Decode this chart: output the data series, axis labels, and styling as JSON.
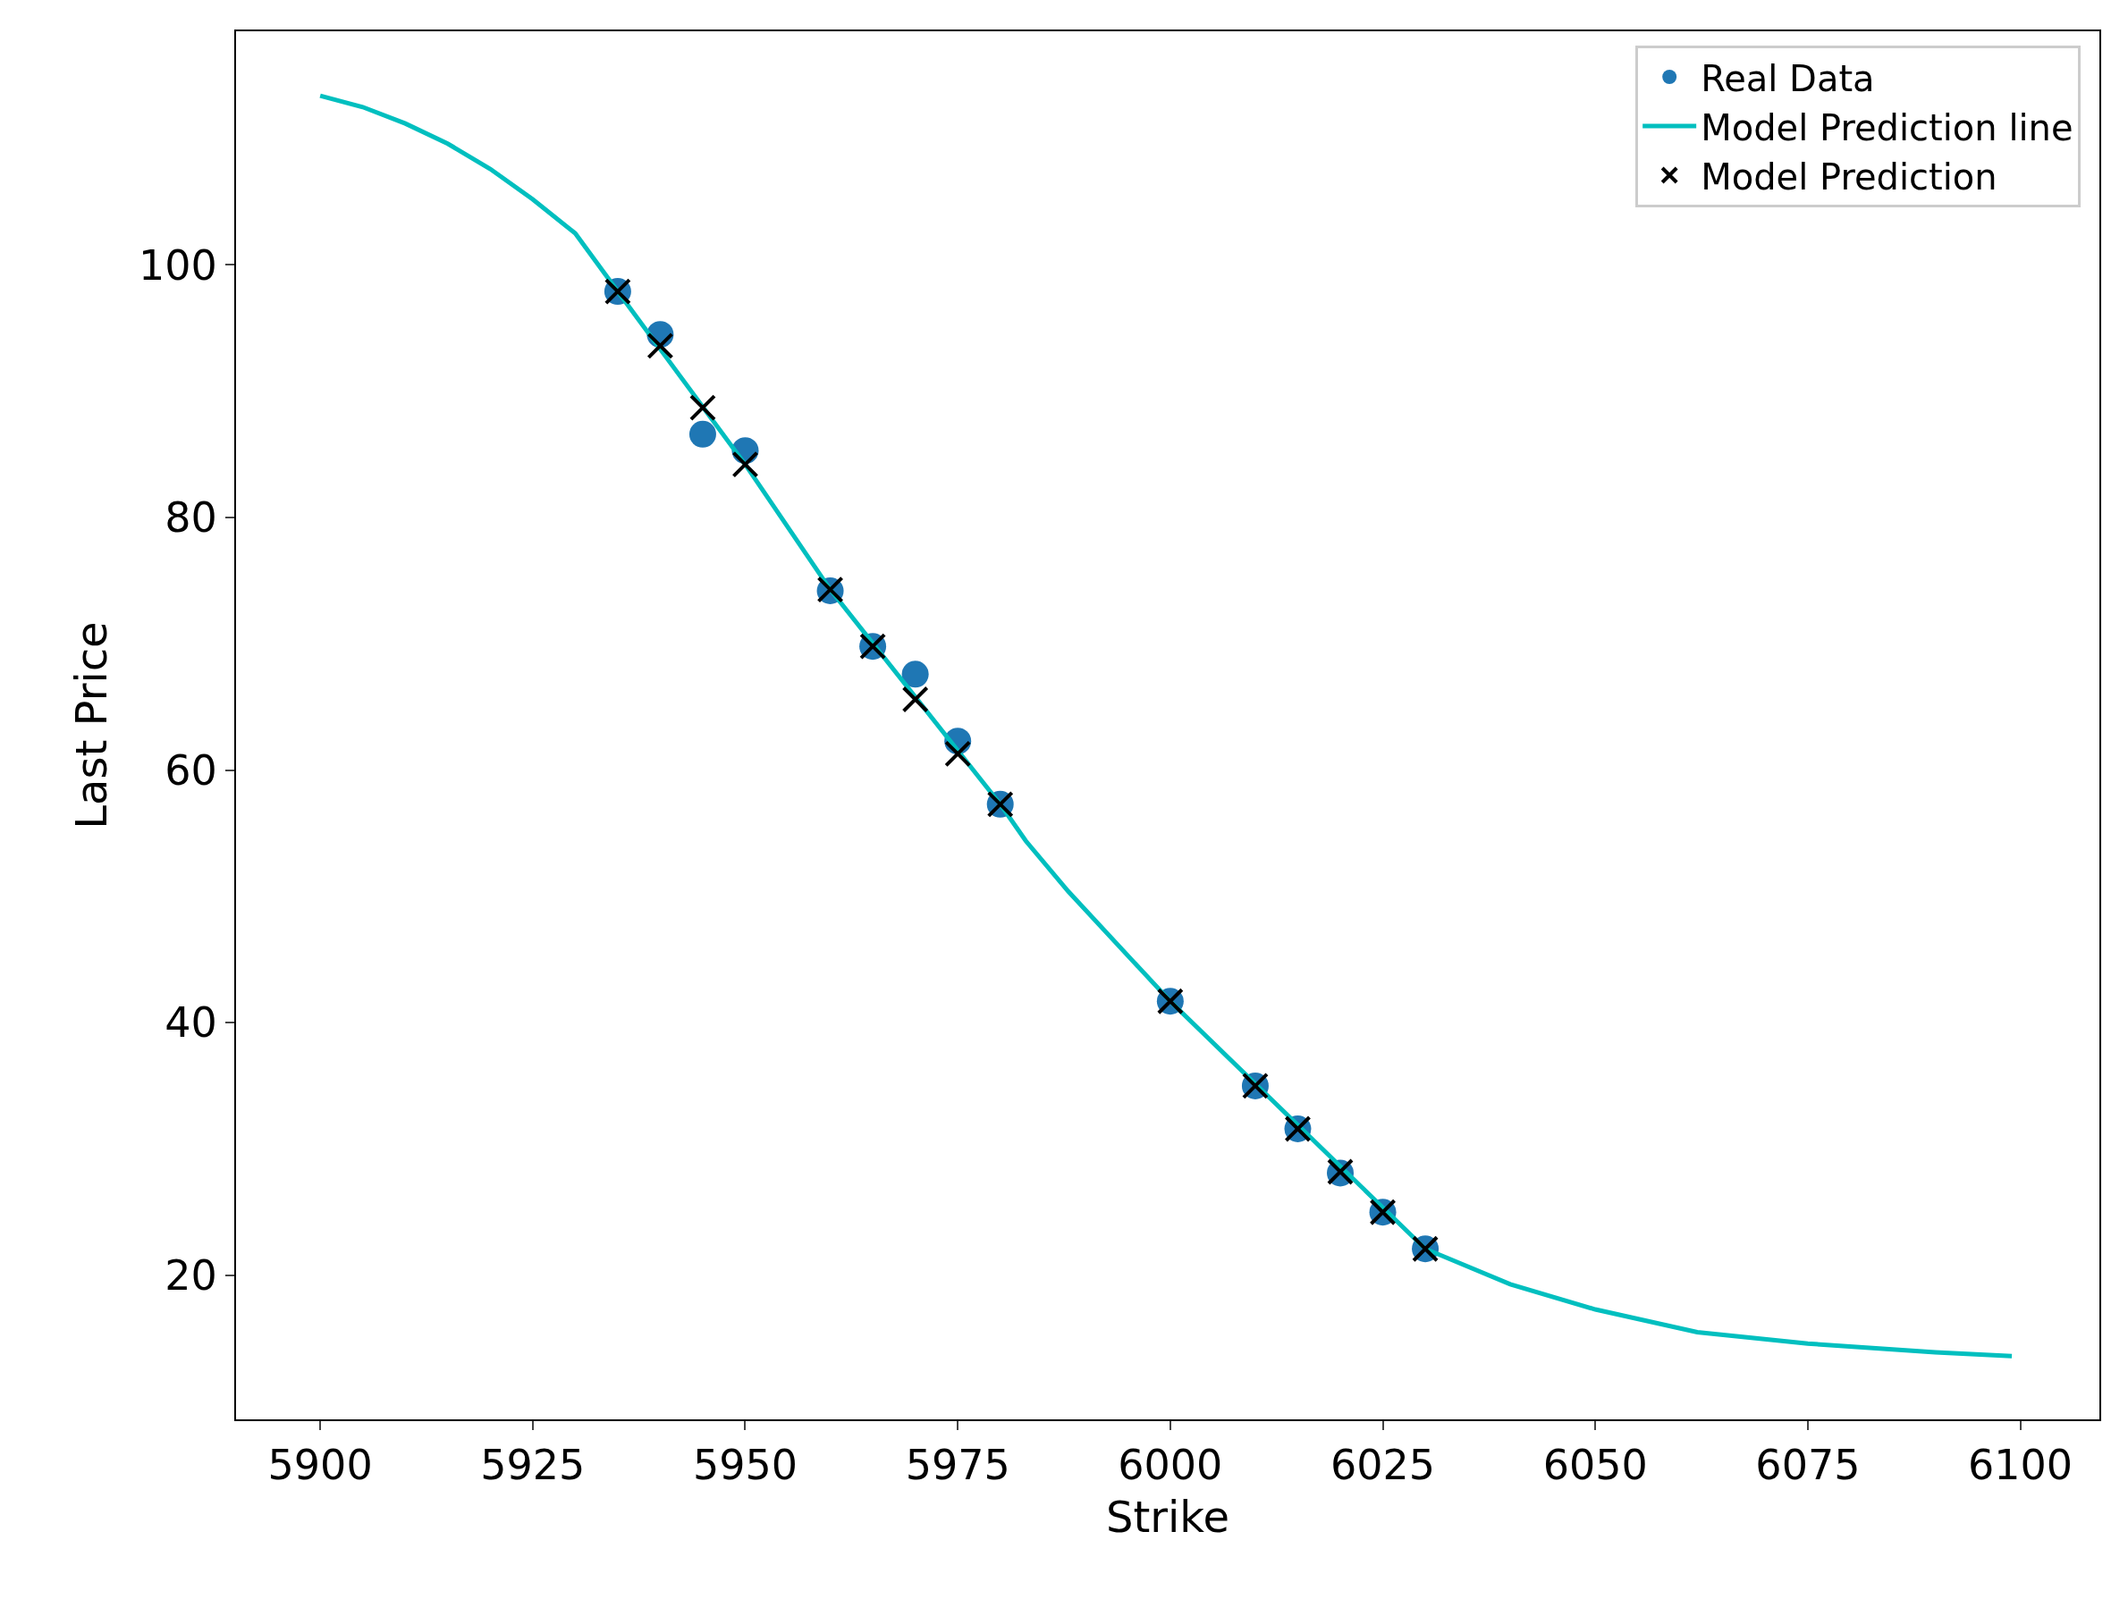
{
  "chart_data": {
    "type": "scatter",
    "xlabel": "Strike",
    "ylabel": "Last Price",
    "xlim": [
      5890.1,
      6109.3
    ],
    "ylim": [
      8.6,
      118.5
    ],
    "xticks": [
      5900,
      5925,
      5950,
      5975,
      6000,
      6025,
      6050,
      6075,
      6100
    ],
    "yticks": [
      20,
      40,
      60,
      80,
      100
    ],
    "grid": false,
    "legend": "top right",
    "series": [
      {
        "name": "Real Data",
        "marker": "circle",
        "color": "#1f77b4",
        "x": [
          5935,
          5940,
          5945,
          5950,
          5960,
          5965,
          5970,
          5975,
          5980,
          6000,
          6010,
          6015,
          6020,
          6025,
          6030
        ],
        "values": [
          97.9,
          94.5,
          86.6,
          85.3,
          74.2,
          69.8,
          67.6,
          62.3,
          57.3,
          41.7,
          35.0,
          31.6,
          28.1,
          25.0,
          22.1
        ]
      },
      {
        "name": "Model Prediction line",
        "type": "line",
        "marker": "none",
        "line_style": "solid",
        "color": "#00bfbf",
        "x": [
          5900,
          5905,
          5910,
          5915,
          5920,
          5925,
          5930,
          5935,
          5950,
          5960,
          5980,
          5983,
          5988,
          6000,
          6030,
          6040,
          6050,
          6062,
          6075,
          6090,
          6099
        ],
        "values": [
          113.4,
          112.5,
          111.2,
          109.6,
          107.6,
          105.2,
          102.5,
          97.9,
          84.2,
          74.3,
          57.3,
          54.4,
          50.4,
          41.7,
          22.1,
          19.3,
          17.3,
          15.5,
          14.6,
          13.9,
          13.6
        ]
      },
      {
        "name": "Model Prediction",
        "marker": "cross",
        "color": "#000000",
        "x": [
          5935,
          5940,
          5945,
          5950,
          5960,
          5965,
          5970,
          5975,
          5980,
          6000,
          6010,
          6015,
          6020,
          6025,
          6030
        ],
        "values": [
          97.9,
          93.6,
          88.7,
          84.2,
          74.3,
          69.8,
          65.6,
          61.3,
          57.3,
          41.7,
          35.0,
          31.6,
          28.2,
          25.0,
          22.1
        ]
      }
    ]
  }
}
